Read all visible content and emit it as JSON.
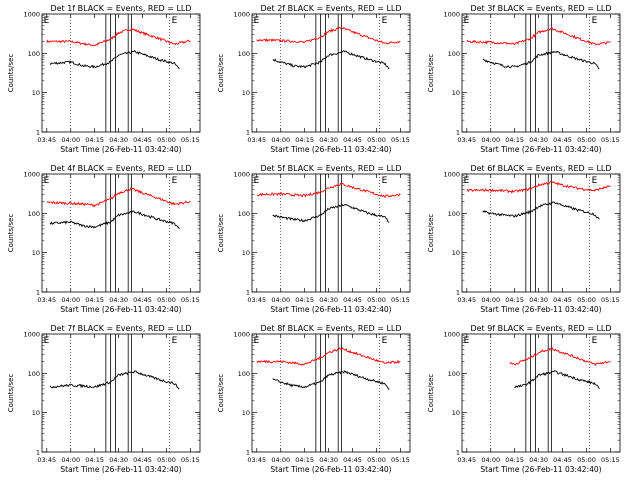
{
  "figure": {
    "background": "#ffffff",
    "panel_count": 9
  },
  "chart_data": [
    {
      "type": "line",
      "title": "Det 1f BLACK = Events, RED = LLD",
      "xlabel": "Start Time (26-Feb-11 03:42:40)",
      "ylabel": "Counts/sec",
      "x_ticks": [
        "03:45",
        "04:00",
        "04:15",
        "04:30",
        "04:45",
        "05:00",
        "05:15"
      ],
      "y_ticks": [
        "1",
        "10",
        "100",
        "1000"
      ],
      "yscale": "log",
      "ylim": [
        1,
        1000
      ],
      "xlim_minutes_after_0342": [
        0,
        99
      ],
      "annotations": [
        {
          "text": "E",
          "position": "top-left"
        },
        {
          "text": "E",
          "position": "top-right"
        }
      ],
      "series": [
        {
          "color": "#ff0000",
          "x": [
            "03:45",
            "04:00",
            "04:10",
            "04:15",
            "04:25",
            "04:30",
            "04:38",
            "04:45",
            "04:55",
            "05:05",
            "05:15"
          ],
          "values": [
            200,
            200,
            170,
            160,
            230,
            330,
            420,
            330,
            240,
            170,
            210
          ]
        },
        {
          "color": "#000000",
          "x": [
            "03:47",
            "04:00",
            "04:08",
            "04:15",
            "04:25",
            "04:30",
            "04:40",
            "04:45",
            "04:55",
            "05:05",
            "05:08"
          ],
          "values": [
            55,
            60,
            48,
            45,
            60,
            90,
            110,
            95,
            70,
            55,
            40
          ]
        }
      ]
    },
    {
      "type": "line",
      "title": "Det 2f BLACK = Events, RED = LLD",
      "xlabel": "Start Time (26-Feb-11 03:42:40)",
      "ylabel": "Counts/sec",
      "x_ticks": [
        "03:45",
        "04:00",
        "04:15",
        "04:30",
        "04:45",
        "05:00",
        "05:15"
      ],
      "y_ticks": [
        "1",
        "10",
        "100",
        "1000"
      ],
      "yscale": "log",
      "ylim": [
        1,
        1000
      ],
      "xlim_minutes_after_0342": [
        0,
        99
      ],
      "annotations": [
        {
          "text": "E",
          "position": "top-left"
        },
        {
          "text": "E",
          "position": "top-right"
        }
      ],
      "series": [
        {
          "color": "#ff0000",
          "x": [
            "03:45",
            "04:00",
            "04:10",
            "04:15",
            "04:25",
            "04:30",
            "04:38",
            "04:45",
            "04:55",
            "05:05",
            "05:15"
          ],
          "values": [
            220,
            210,
            200,
            190,
            260,
            360,
            450,
            350,
            250,
            180,
            200
          ]
        },
        {
          "color": "#000000",
          "x": [
            "03:55",
            "04:00",
            "04:08",
            "04:15",
            "04:25",
            "04:30",
            "04:40",
            "04:45",
            "04:55",
            "05:05",
            "05:08"
          ],
          "values": [
            70,
            60,
            48,
            45,
            60,
            90,
            110,
            95,
            70,
            55,
            40
          ]
        }
      ]
    },
    {
      "type": "line",
      "title": "Det 3f BLACK = Events, RED = LLD",
      "xlabel": "Start Time (26-Feb-11 03:42:40)",
      "ylabel": "Counts/sec",
      "x_ticks": [
        "03:45",
        "04:00",
        "04:15",
        "04:30",
        "04:45",
        "05:00",
        "05:15"
      ],
      "y_ticks": [
        "1",
        "10",
        "100",
        "1000"
      ],
      "yscale": "log",
      "ylim": [
        1,
        1000
      ],
      "xlim_minutes_after_0342": [
        0,
        99
      ],
      "annotations": [
        {
          "text": "E",
          "position": "top-left"
        },
        {
          "text": "E",
          "position": "top-right"
        }
      ],
      "series": [
        {
          "color": "#ff0000",
          "x": [
            "03:45",
            "04:00",
            "04:10",
            "04:15",
            "04:25",
            "04:30",
            "04:38",
            "04:45",
            "04:55",
            "05:05",
            "05:15"
          ],
          "values": [
            200,
            190,
            180,
            170,
            240,
            340,
            430,
            340,
            240,
            170,
            190
          ]
        },
        {
          "color": "#000000",
          "x": [
            "03:55",
            "04:00",
            "04:08",
            "04:15",
            "04:25",
            "04:30",
            "04:40",
            "04:45",
            "04:55",
            "05:05",
            "05:08"
          ],
          "values": [
            70,
            60,
            48,
            45,
            60,
            90,
            110,
            95,
            70,
            55,
            40
          ]
        }
      ]
    },
    {
      "type": "line",
      "title": "Det 4f BLACK = Events, RED = LLD",
      "xlabel": "Start Time (26-Feb-11 03:42:40)",
      "ylabel": "Counts/sec",
      "x_ticks": [
        "03:45",
        "04:00",
        "04:15",
        "04:30",
        "04:45",
        "05:00",
        "05:15"
      ],
      "y_ticks": [
        "1",
        "10",
        "100",
        "1000"
      ],
      "yscale": "log",
      "ylim": [
        1,
        1000
      ],
      "xlim_minutes_after_0342": [
        0,
        99
      ],
      "annotations": [
        {
          "text": "E",
          "position": "top-left"
        },
        {
          "text": "E",
          "position": "top-right"
        }
      ],
      "series": [
        {
          "color": "#ff0000",
          "x": [
            "03:45",
            "04:00",
            "04:10",
            "04:15",
            "04:25",
            "04:30",
            "04:38",
            "04:45",
            "04:55",
            "05:05",
            "05:15"
          ],
          "values": [
            190,
            180,
            170,
            160,
            230,
            330,
            420,
            330,
            240,
            170,
            200
          ]
        },
        {
          "color": "#000000",
          "x": [
            "03:47",
            "04:00",
            "04:08",
            "04:15",
            "04:25",
            "04:30",
            "04:40",
            "04:45",
            "04:55",
            "05:05",
            "05:08"
          ],
          "values": [
            55,
            60,
            48,
            45,
            60,
            90,
            110,
            95,
            70,
            55,
            40
          ]
        }
      ]
    },
    {
      "type": "line",
      "title": "Det 5f BLACK = Events, RED = LLD",
      "xlabel": "Start Time (26-Feb-11 03:42:40)",
      "ylabel": "Counts/sec",
      "x_ticks": [
        "03:45",
        "04:00",
        "04:15",
        "04:30",
        "04:45",
        "05:00",
        "05:15"
      ],
      "y_ticks": [
        "1",
        "10",
        "100",
        "1000"
      ],
      "yscale": "log",
      "ylim": [
        1,
        1000
      ],
      "xlim_minutes_after_0342": [
        0,
        99
      ],
      "annotations": [
        {
          "text": "E",
          "position": "top-left"
        },
        {
          "text": "E",
          "position": "top-right"
        }
      ],
      "series": [
        {
          "color": "#ff0000",
          "x": [
            "03:45",
            "04:00",
            "04:10",
            "04:15",
            "04:25",
            "04:30",
            "04:38",
            "04:45",
            "04:55",
            "05:05",
            "05:15"
          ],
          "values": [
            300,
            310,
            290,
            280,
            350,
            450,
            560,
            460,
            350,
            270,
            300
          ]
        },
        {
          "color": "#000000",
          "x": [
            "03:55",
            "04:00",
            "04:08",
            "04:15",
            "04:25",
            "04:30",
            "04:40",
            "04:45",
            "04:55",
            "05:05",
            "05:08"
          ],
          "values": [
            90,
            80,
            70,
            65,
            90,
            130,
            165,
            140,
            100,
            80,
            60
          ]
        }
      ]
    },
    {
      "type": "line",
      "title": "Det 6f BLACK = Events, RED = LLD",
      "xlabel": "Start Time (26-Feb-11 03:42:40)",
      "ylabel": "Counts/sec",
      "x_ticks": [
        "03:45",
        "04:00",
        "04:15",
        "04:30",
        "04:45",
        "05:00",
        "05:15"
      ],
      "y_ticks": [
        "1",
        "10",
        "100",
        "1000"
      ],
      "yscale": "log",
      "ylim": [
        1,
        1000
      ],
      "xlim_minutes_after_0342": [
        0,
        99
      ],
      "annotations": [
        {
          "text": "E",
          "position": "top-left"
        },
        {
          "text": "E",
          "position": "top-right"
        }
      ],
      "series": [
        {
          "color": "#ff0000",
          "x": [
            "03:45",
            "04:00",
            "04:10",
            "04:15",
            "04:25",
            "04:30",
            "04:38",
            "04:45",
            "04:55",
            "05:05",
            "05:15"
          ],
          "values": [
            380,
            390,
            370,
            360,
            420,
            520,
            620,
            520,
            430,
            380,
            500
          ]
        },
        {
          "color": "#000000",
          "x": [
            "03:55",
            "04:00",
            "04:08",
            "04:15",
            "04:25",
            "04:30",
            "04:40",
            "04:45",
            "04:55",
            "05:05",
            "05:08"
          ],
          "values": [
            110,
            100,
            90,
            85,
            110,
            150,
            190,
            160,
            120,
            95,
            70
          ]
        }
      ]
    },
    {
      "type": "line",
      "title": "Det 7f BLACK = Events, RED = LLD",
      "xlabel": "Start Time (26-Feb-11 03:42:40)",
      "ylabel": "Counts/sec",
      "x_ticks": [
        "03:45",
        "04:00",
        "04:15",
        "04:30",
        "04:45",
        "05:00",
        "05:15"
      ],
      "y_ticks": [
        "1",
        "10",
        "100",
        "1000"
      ],
      "yscale": "log",
      "ylim": [
        1,
        1000
      ],
      "xlim_minutes_after_0342": [
        0,
        99
      ],
      "annotations": [
        {
          "text": "E",
          "position": "top-left"
        },
        {
          "text": "E",
          "position": "top-right"
        }
      ],
      "series": [
        {
          "color": "#000000",
          "x": [
            "03:47",
            "04:00",
            "04:08",
            "04:15",
            "04:25",
            "04:30",
            "04:40",
            "04:45",
            "04:55",
            "05:05",
            "05:08"
          ],
          "values": [
            45,
            50,
            48,
            45,
            60,
            90,
            110,
            95,
            70,
            55,
            40
          ]
        }
      ]
    },
    {
      "type": "line",
      "title": "Det 8f BLACK = Events, RED = LLD",
      "xlabel": "Start Time (26-Feb-11 03:42:40)",
      "ylabel": "Counts/sec",
      "x_ticks": [
        "03:45",
        "04:00",
        "04:15",
        "04:30",
        "04:45",
        "05:00",
        "05:15"
      ],
      "y_ticks": [
        "1",
        "10",
        "100",
        "1000"
      ],
      "yscale": "log",
      "ylim": [
        1,
        1000
      ],
      "xlim_minutes_after_0342": [
        0,
        99
      ],
      "annotations": [
        {
          "text": "E",
          "position": "top-left"
        },
        {
          "text": "E",
          "position": "top-right"
        }
      ],
      "series": [
        {
          "color": "#ff0000",
          "x": [
            "03:45",
            "04:00",
            "04:10",
            "04:15",
            "04:25",
            "04:30",
            "04:38",
            "04:45",
            "04:55",
            "05:05",
            "05:15"
          ],
          "values": [
            200,
            200,
            180,
            170,
            250,
            340,
            430,
            340,
            250,
            180,
            200
          ]
        },
        {
          "color": "#000000",
          "x": [
            "03:55",
            "04:00",
            "04:08",
            "04:15",
            "04:25",
            "04:30",
            "04:40",
            "04:45",
            "04:55",
            "05:05",
            "05:08"
          ],
          "values": [
            70,
            60,
            48,
            45,
            60,
            90,
            110,
            95,
            70,
            55,
            40
          ]
        }
      ]
    },
    {
      "type": "line",
      "title": "Det 9f BLACK = Events, RED = LLD",
      "xlabel": "Start Time (26-Feb-11 03:42:40)",
      "ylabel": "Counts/sec",
      "x_ticks": [
        "03:45",
        "04:00",
        "04:15",
        "04:30",
        "04:45",
        "05:00",
        "05:15"
      ],
      "y_ticks": [
        "1",
        "10",
        "100",
        "1000"
      ],
      "yscale": "log",
      "ylim": [
        1,
        1000
      ],
      "xlim_minutes_after_0342": [
        0,
        99
      ],
      "annotations": [
        {
          "text": "E",
          "position": "top-left"
        },
        {
          "text": "E",
          "position": "top-right"
        }
      ],
      "series": [
        {
          "color": "#ff0000",
          "x": [
            "04:12",
            "04:15",
            "04:25",
            "04:30",
            "04:38",
            "04:45",
            "04:55",
            "05:05",
            "05:15"
          ],
          "values": [
            180,
            170,
            250,
            340,
            430,
            340,
            240,
            170,
            200
          ]
        },
        {
          "color": "#000000",
          "x": [
            "04:15",
            "04:20",
            "04:25",
            "04:30",
            "04:40",
            "04:45",
            "04:55",
            "05:05",
            "05:08"
          ],
          "values": [
            45,
            48,
            60,
            90,
            110,
            95,
            70,
            55,
            40
          ]
        }
      ]
    }
  ]
}
